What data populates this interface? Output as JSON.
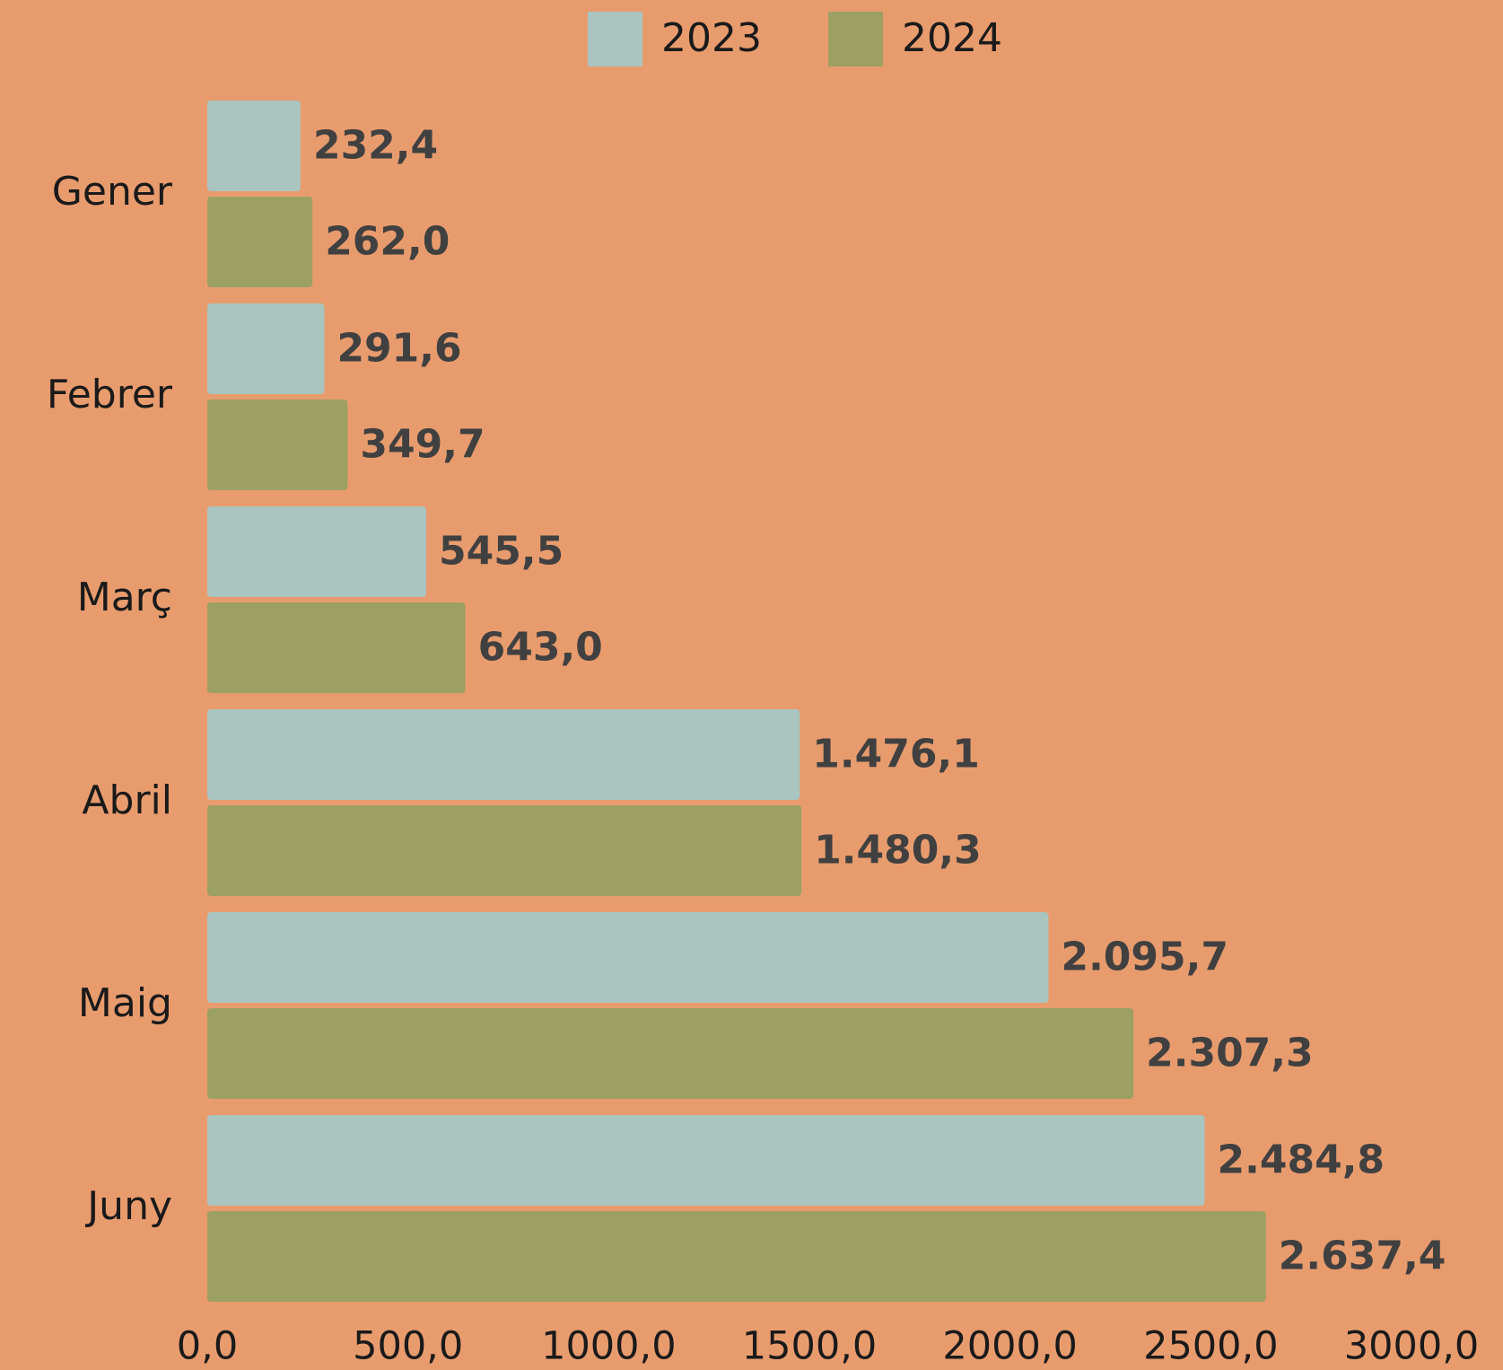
{
  "chart_data": {
    "type": "barh",
    "categories": [
      "Gener",
      "Febrer",
      "Març",
      "Abril",
      "Maig",
      "Juny"
    ],
    "series": [
      {
        "name": "2023",
        "color": "#AAC4C0",
        "values": [
          232.4,
          291.6,
          545.5,
          1476.1,
          2095.7,
          2484.8
        ],
        "value_labels": [
          "232,4",
          "291,6",
          "545,5",
          "1.476,1",
          "2.095,7",
          "2.484,8"
        ]
      },
      {
        "name": "2024",
        "color": "#9DA063",
        "values": [
          262.0,
          349.7,
          643.0,
          1480.3,
          2307.3,
          2637.4
        ],
        "value_labels": [
          "262,0",
          "349,7",
          "643,0",
          "1.480,3",
          "2.307,3",
          "2.637,4"
        ]
      }
    ],
    "xlim": [
      0,
      3000
    ],
    "xticks": [
      {
        "value": 0,
        "label": "0,0"
      },
      {
        "value": 500,
        "label": "500,0"
      },
      {
        "value": 1000,
        "label": "1000,0"
      },
      {
        "value": 1500,
        "label": "1500,0"
      },
      {
        "value": 2000,
        "label": "2000,0"
      },
      {
        "value": 2500,
        "label": "2500,0"
      },
      {
        "value": 3000,
        "label": "3000,0"
      }
    ],
    "legend": "top"
  }
}
